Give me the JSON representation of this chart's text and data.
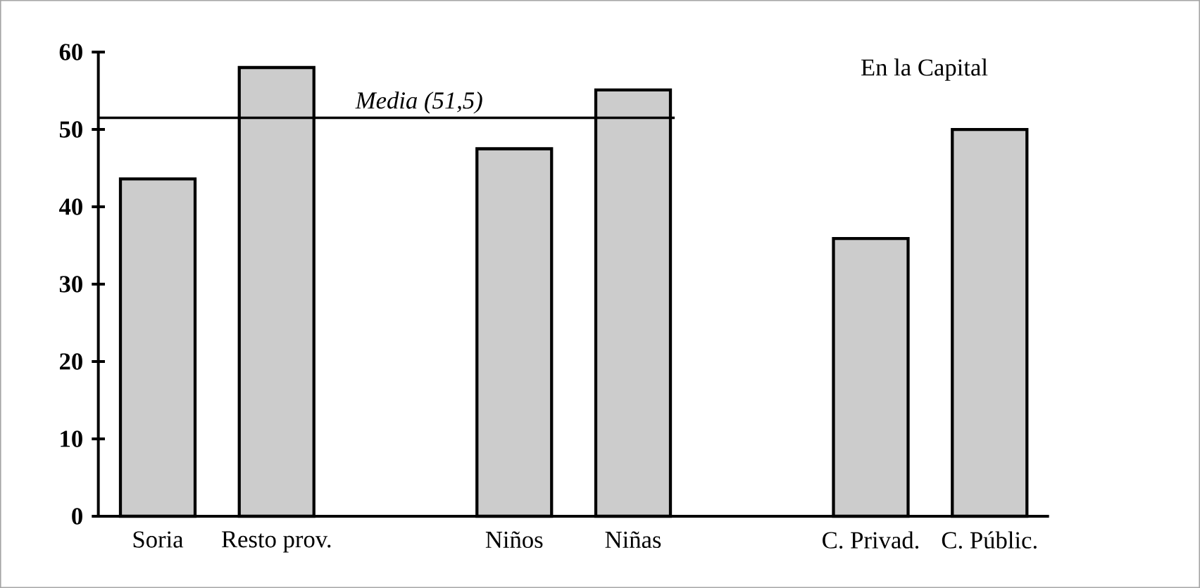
{
  "chart_data": {
    "type": "bar",
    "categories": [
      "Soria",
      "Resto prov.",
      null,
      "Niños",
      "Niñas",
      null,
      "C. Privad.",
      "C. Públic."
    ],
    "values": [
      43.6,
      58,
      null,
      47.5,
      55.1,
      null,
      35.9,
      50
    ],
    "color": "#cccccc",
    "ylim": [
      0,
      60
    ],
    "yticks": [
      0,
      10,
      20,
      30,
      40,
      50,
      60
    ],
    "ref_lines": [
      {
        "axis": "y",
        "value": 51.5,
        "label": "Media (51,5)",
        "color": "#000000"
      }
    ],
    "annotations": [
      "En la Capital"
    ]
  }
}
